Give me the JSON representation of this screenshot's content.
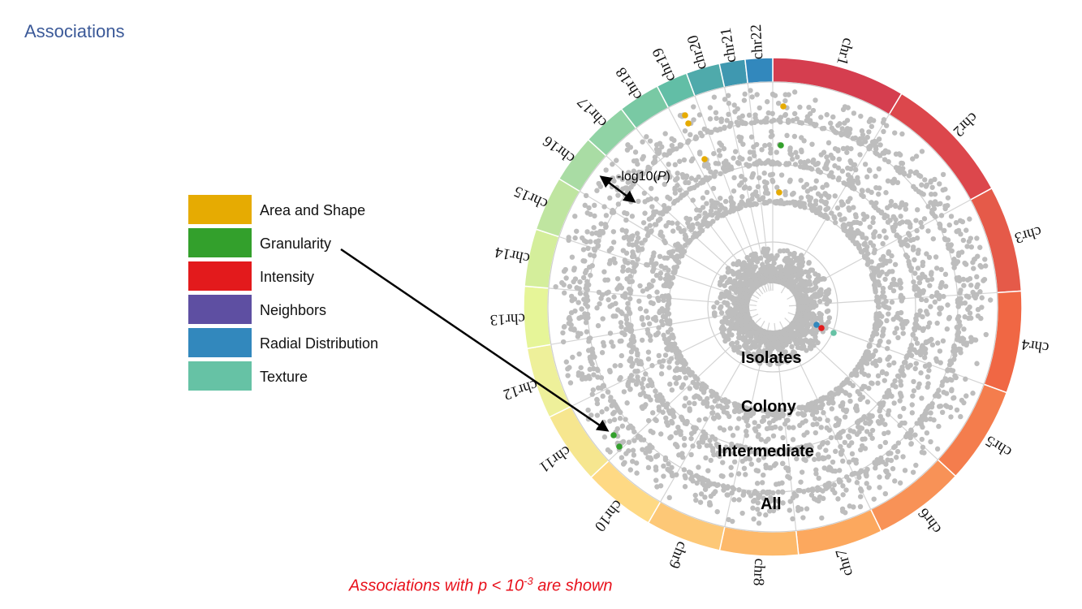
{
  "title": "Associations",
  "legend": [
    {
      "label": "Area and Shape",
      "color": "#E6AB02"
    },
    {
      "label": "Granularity",
      "color": "#33A02C"
    },
    {
      "label": "Intensity",
      "color": "#E31A1C"
    },
    {
      "label": "Neighbors",
      "color": "#5E4FA2"
    },
    {
      "label": "Radial Distribution",
      "color": "#3288BD"
    },
    {
      "label": "Texture",
      "color": "#66C2A5"
    }
  ],
  "chromosomes": [
    {
      "name": "chr1",
      "color": "#D53E4F"
    },
    {
      "name": "chr2",
      "color": "#DC474C"
    },
    {
      "name": "chr3",
      "color": "#E55A49"
    },
    {
      "name": "chr4",
      "color": "#F06744"
    },
    {
      "name": "chr5",
      "color": "#F47D4D"
    },
    {
      "name": "chr6",
      "color": "#F89257"
    },
    {
      "name": "chr7",
      "color": "#FCA85E"
    },
    {
      "name": "chr8",
      "color": "#FDB96A"
    },
    {
      "name": "chr9",
      "color": "#FDC877"
    },
    {
      "name": "chr10",
      "color": "#FED984"
    },
    {
      "name": "chr11",
      "color": "#F6E68F"
    },
    {
      "name": "chr12",
      "color": "#EEF09A"
    },
    {
      "name": "chr13",
      "color": "#E6F598"
    },
    {
      "name": "chr14",
      "color": "#D4EE9B"
    },
    {
      "name": "chr15",
      "color": "#BFE5A0"
    },
    {
      "name": "chr16",
      "color": "#A9DCA4"
    },
    {
      "name": "chr17",
      "color": "#90D3A5"
    },
    {
      "name": "chr18",
      "color": "#79C9A4"
    },
    {
      "name": "chr19",
      "color": "#62BEA6"
    },
    {
      "name": "chr20",
      "color": "#4FAAAB"
    },
    {
      "name": "chr21",
      "color": "#3F98B0"
    },
    {
      "name": "chr22",
      "color": "#3288BD"
    }
  ],
  "tracks": [
    {
      "label": "Isolates"
    },
    {
      "label": "Colony"
    },
    {
      "label": "Intermediate"
    },
    {
      "label": "All"
    }
  ],
  "axis_label": "-log10(",
  "axis_label_p": "P",
  "axis_label_end": ")",
  "footnote": {
    "prefix": "Associations with p < 10",
    "exponent": "-3",
    "suffix": " are shown"
  }
}
